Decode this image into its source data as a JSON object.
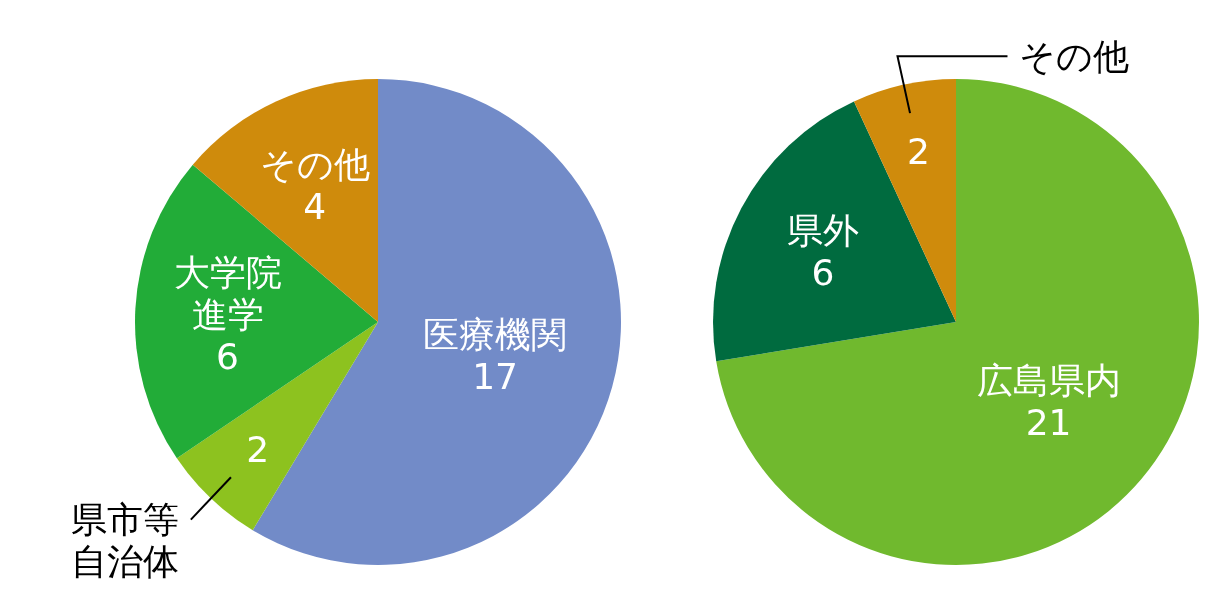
{
  "chart_data": [
    {
      "type": "pie",
      "categories": [
        "医療機関",
        "県市等自治体",
        "大学院進学",
        "その他"
      ],
      "values": [
        17,
        2,
        6,
        4
      ],
      "colors": [
        "#728bc8",
        "#8dc21f",
        "#22ac38",
        "#cf8b0c"
      ],
      "data_labels": true
    },
    {
      "type": "pie",
      "categories": [
        "広島県内",
        "県外",
        "その他"
      ],
      "values": [
        21,
        6,
        2
      ],
      "colors": [
        "#70b92e",
        "#006b3f",
        "#cf8b0c"
      ],
      "data_labels": true
    }
  ]
}
